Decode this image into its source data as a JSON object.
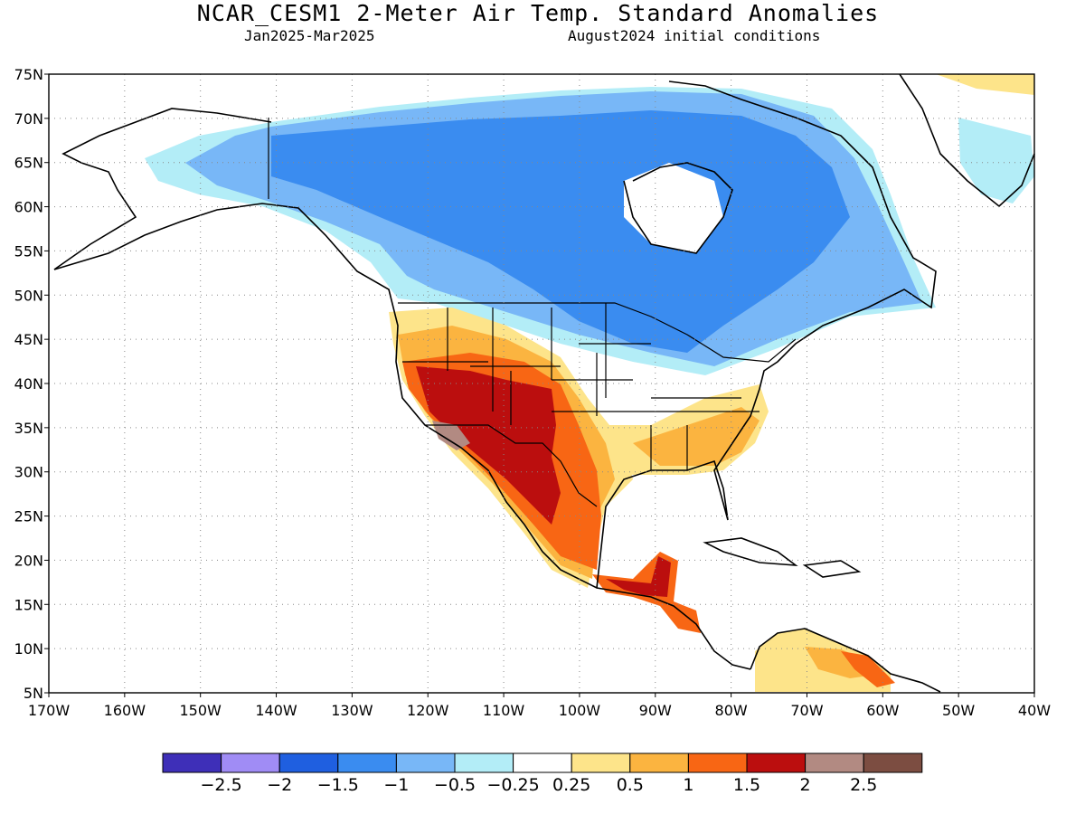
{
  "header": {
    "title": "NCAR_CESM1 2-Meter Air Temp. Standard Anomalies",
    "period": "Jan2025-Mar2025",
    "init": "August2024 initial conditions"
  },
  "map": {
    "lat_range": [
      5,
      75
    ],
    "lon_range": [
      -170,
      -40
    ],
    "lat_labels": [
      "5N",
      "10N",
      "15N",
      "20N",
      "25N",
      "30N",
      "35N",
      "40N",
      "45N",
      "50N",
      "55N",
      "60N",
      "65N",
      "70N",
      "75N"
    ],
    "lon_labels": [
      "170W",
      "160W",
      "150W",
      "140W",
      "130W",
      "120W",
      "110W",
      "100W",
      "90W",
      "80W",
      "70W",
      "60W",
      "50W",
      "40W"
    ],
    "grid": "dotted",
    "anomaly_regions": [
      {
        "name": "western-southwestern-us-mexico",
        "level": "1.5 to 2"
      },
      {
        "name": "four-corners-southwest-core",
        "level": "2 to 2.5"
      },
      {
        "name": "canada-north-central",
        "level": "-1.5 to -1"
      },
      {
        "name": "southeast-us",
        "level": "0.25 to 0.5"
      },
      {
        "name": "northern-south-america",
        "level": "0.5 to 1"
      },
      {
        "name": "southwest-greenland",
        "level": "-0.5 to -0.25"
      }
    ]
  },
  "colorbar": {
    "labels": [
      "−2.5",
      "−2",
      "−1.5",
      "−1",
      "−0.5",
      "−0.25",
      "0.25",
      "0.5",
      "1",
      "1.5",
      "2",
      "2.5"
    ],
    "colors": [
      "#3e2fb8",
      "#a08cf5",
      "#1f5fe0",
      "#3a8cf0",
      "#78b7f7",
      "#b3edf7",
      "#ffffff",
      "#fde48a",
      "#fbb440",
      "#f86614",
      "#bb0e0e",
      "#b28a82",
      "#7c4d41"
    ]
  }
}
